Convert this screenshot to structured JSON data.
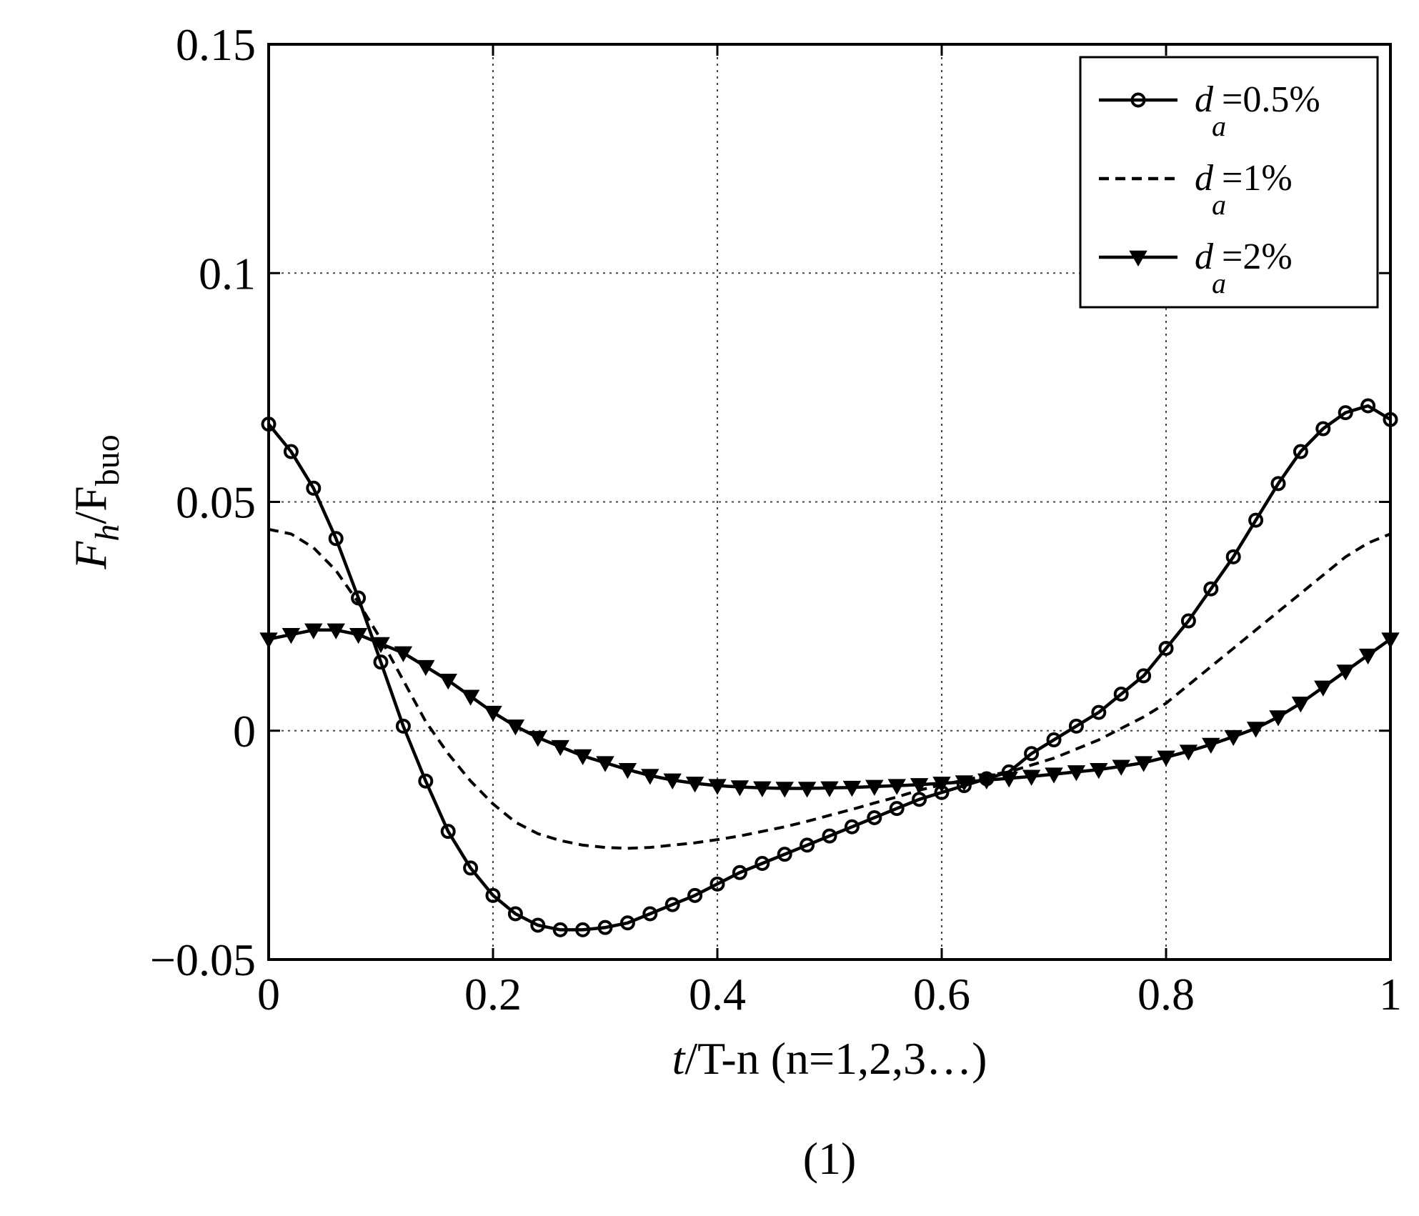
{
  "chart_data": {
    "type": "line",
    "caption": "(1)",
    "xlabel": {
      "italic": "t",
      "rest": "/T-n (n=1,2,3…)"
    },
    "ylabel": {
      "main": "F",
      "sub1": "h",
      "slash": "/F",
      "sub2": "buo"
    },
    "xlim": [
      0,
      1
    ],
    "ylim": [
      -0.05,
      0.15
    ],
    "xticks": [
      0,
      0.2,
      0.4,
      0.6,
      0.8,
      1
    ],
    "xtick_labels": [
      "0",
      "0.2",
      "0.4",
      "0.6",
      "0.8",
      "1"
    ],
    "yticks": [
      -0.05,
      0,
      0.05,
      0.1,
      0.15
    ],
    "ytick_labels": [
      "-0.05",
      "0",
      "0.05",
      "0.1",
      "0.15"
    ],
    "grid": true,
    "legend_position": "top-right",
    "series": [
      {
        "name": "=0.5%",
        "legend_prefix": "d",
        "legend_sub": "a",
        "style": "solid",
        "marker": "circle",
        "color": "#000000",
        "x": [
          0,
          0.02,
          0.04,
          0.06,
          0.08,
          0.1,
          0.12,
          0.14,
          0.16,
          0.18,
          0.2,
          0.22,
          0.24,
          0.26,
          0.28,
          0.3,
          0.32,
          0.34,
          0.36,
          0.38,
          0.4,
          0.42,
          0.44,
          0.46,
          0.48,
          0.5,
          0.52,
          0.54,
          0.56,
          0.58,
          0.6,
          0.62,
          0.64,
          0.66,
          0.68,
          0.7,
          0.72,
          0.74,
          0.76,
          0.78,
          0.8,
          0.82,
          0.84,
          0.86,
          0.88,
          0.9,
          0.92,
          0.94,
          0.96,
          0.98,
          1.0
        ],
        "y": [
          0.067,
          0.061,
          0.053,
          0.042,
          0.029,
          0.015,
          0.001,
          -0.011,
          -0.022,
          -0.03,
          -0.036,
          -0.04,
          -0.0425,
          -0.0435,
          -0.0435,
          -0.043,
          -0.042,
          -0.04,
          -0.038,
          -0.036,
          -0.0335,
          -0.031,
          -0.029,
          -0.027,
          -0.025,
          -0.023,
          -0.021,
          -0.019,
          -0.017,
          -0.015,
          -0.0135,
          -0.012,
          -0.0105,
          -0.009,
          -0.005,
          -0.002,
          0.001,
          0.004,
          0.008,
          0.012,
          0.018,
          0.024,
          0.031,
          0.038,
          0.046,
          0.054,
          0.061,
          0.066,
          0.0695,
          0.071,
          0.068
        ]
      },
      {
        "name": "=1%",
        "legend_prefix": "d",
        "legend_sub": "a",
        "style": "dashed",
        "marker": "none",
        "color": "#000000",
        "x": [
          0,
          0.02,
          0.04,
          0.06,
          0.08,
          0.1,
          0.12,
          0.14,
          0.16,
          0.18,
          0.2,
          0.22,
          0.24,
          0.26,
          0.28,
          0.3,
          0.32,
          0.34,
          0.36,
          0.38,
          0.4,
          0.42,
          0.44,
          0.46,
          0.48,
          0.5,
          0.52,
          0.54,
          0.56,
          0.58,
          0.6,
          0.62,
          0.64,
          0.66,
          0.68,
          0.7,
          0.72,
          0.74,
          0.76,
          0.78,
          0.8,
          0.82,
          0.84,
          0.86,
          0.88,
          0.9,
          0.92,
          0.94,
          0.96,
          0.98,
          1.0
        ],
        "y": [
          0.044,
          0.043,
          0.04,
          0.035,
          0.028,
          0.02,
          0.011,
          0.002,
          -0.005,
          -0.011,
          -0.016,
          -0.02,
          -0.0225,
          -0.024,
          -0.025,
          -0.0255,
          -0.0257,
          -0.0255,
          -0.025,
          -0.0245,
          -0.0238,
          -0.023,
          -0.022,
          -0.021,
          -0.0198,
          -0.0185,
          -0.0172,
          -0.0158,
          -0.0145,
          -0.013,
          -0.0118,
          -0.0108,
          -0.0098,
          -0.009,
          -0.0075,
          -0.006,
          -0.004,
          -0.002,
          0.0005,
          0.003,
          0.006,
          0.01,
          0.014,
          0.018,
          0.022,
          0.026,
          0.03,
          0.034,
          0.038,
          0.041,
          0.043
        ]
      },
      {
        "name": "=2%",
        "legend_prefix": "d",
        "legend_sub": "a",
        "style": "solid",
        "marker": "triangle-down",
        "color": "#000000",
        "x": [
          0,
          0.02,
          0.04,
          0.06,
          0.08,
          0.1,
          0.12,
          0.14,
          0.16,
          0.18,
          0.2,
          0.22,
          0.24,
          0.26,
          0.28,
          0.3,
          0.32,
          0.34,
          0.36,
          0.38,
          0.4,
          0.42,
          0.44,
          0.46,
          0.48,
          0.5,
          0.52,
          0.54,
          0.56,
          0.58,
          0.6,
          0.62,
          0.64,
          0.66,
          0.68,
          0.7,
          0.72,
          0.74,
          0.76,
          0.78,
          0.8,
          0.82,
          0.84,
          0.86,
          0.88,
          0.9,
          0.92,
          0.94,
          0.96,
          0.98,
          1.0
        ],
        "y": [
          0.02,
          0.021,
          0.022,
          0.022,
          0.021,
          0.019,
          0.017,
          0.014,
          0.011,
          0.0075,
          0.004,
          0.001,
          -0.0015,
          -0.0035,
          -0.0055,
          -0.007,
          -0.0085,
          -0.0098,
          -0.0108,
          -0.0115,
          -0.012,
          -0.0123,
          -0.0125,
          -0.0126,
          -0.0126,
          -0.0125,
          -0.0124,
          -0.0122,
          -0.012,
          -0.0118,
          -0.0115,
          -0.0112,
          -0.0108,
          -0.0104,
          -0.01,
          -0.0095,
          -0.009,
          -0.0085,
          -0.0078,
          -0.007,
          -0.0058,
          -0.0045,
          -0.003,
          -0.0013,
          0.0005,
          0.003,
          0.006,
          0.0095,
          0.013,
          0.0165,
          0.02
        ]
      }
    ]
  }
}
